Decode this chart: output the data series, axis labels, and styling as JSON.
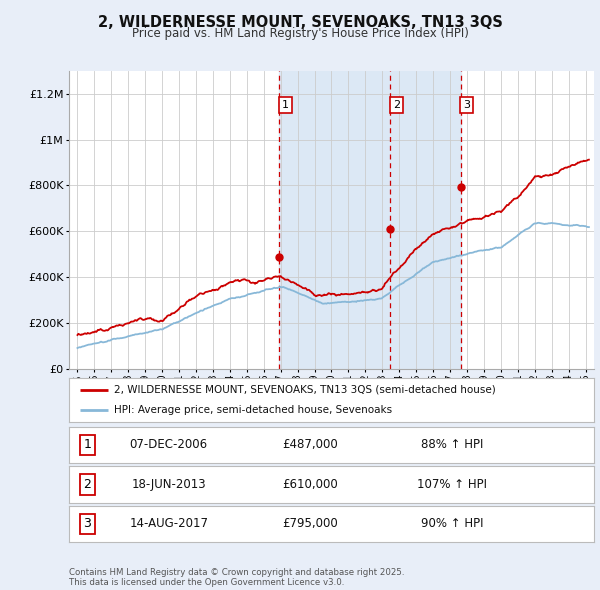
{
  "title": "2, WILDERNESSE MOUNT, SEVENOAKS, TN13 3QS",
  "subtitle": "Price paid vs. HM Land Registry's House Price Index (HPI)",
  "bg_color": "#e8eef8",
  "plot_bg_color": "#ffffff",
  "plot_shaded_color": "#dce8f5",
  "grid_color": "#cccccc",
  "red_line_color": "#cc0000",
  "blue_line_color": "#88b8d8",
  "sale_marker_color": "#cc0000",
  "vline_color": "#cc0000",
  "ylim": [
    0,
    1300000
  ],
  "xlim_start": 1994.5,
  "xlim_end": 2025.5,
  "ytick_values": [
    0,
    200000,
    400000,
    600000,
    800000,
    1000000,
    1200000
  ],
  "xtick_years": [
    1995,
    1996,
    1997,
    1998,
    1999,
    2000,
    2001,
    2002,
    2003,
    2004,
    2005,
    2006,
    2007,
    2008,
    2009,
    2010,
    2011,
    2012,
    2013,
    2014,
    2015,
    2016,
    2017,
    2018,
    2019,
    2020,
    2021,
    2022,
    2023,
    2024,
    2025
  ],
  "sales": [
    {
      "label": "1",
      "date": 2006.92,
      "price": 487000,
      "pct": "88%",
      "date_str": "07-DEC-2006"
    },
    {
      "label": "2",
      "date": 2013.46,
      "price": 610000,
      "pct": "107%",
      "date_str": "18-JUN-2013"
    },
    {
      "label": "3",
      "date": 2017.62,
      "price": 795000,
      "pct": "90%",
      "date_str": "14-AUG-2017"
    }
  ],
  "legend_line1": "2, WILDERNESSE MOUNT, SEVENOAKS, TN13 3QS (semi-detached house)",
  "legend_line2": "HPI: Average price, semi-detached house, Sevenoaks",
  "footer": "Contains HM Land Registry data © Crown copyright and database right 2025.\nThis data is licensed under the Open Government Licence v3.0."
}
